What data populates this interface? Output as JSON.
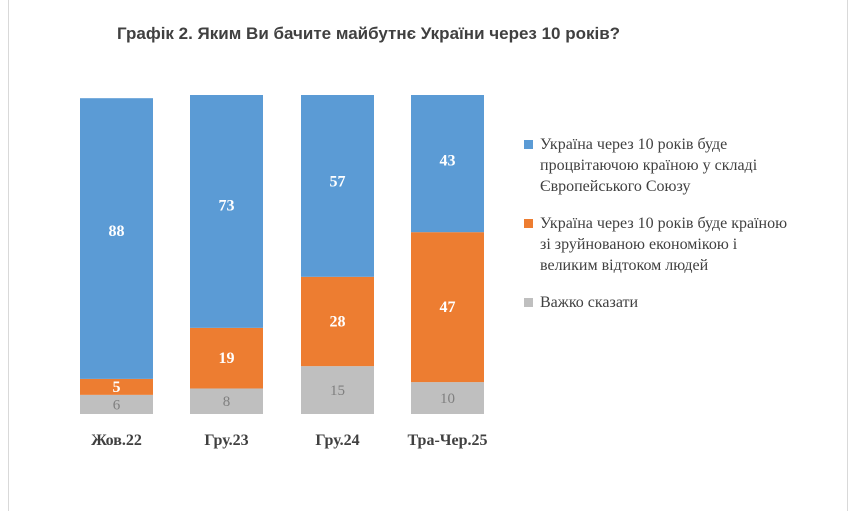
{
  "chart_data": {
    "type": "bar",
    "stacked": true,
    "title": "Графік 2. Яким Ви бачите майбутнє України через 10 років?",
    "categories": [
      "Жов.22",
      "Гру.23",
      "Гру.24",
      "Тра-Чер.25"
    ],
    "ylim": [
      0,
      100
    ],
    "grid": false,
    "legend_position": "right",
    "series": [
      {
        "name": "Україна через 10 років буде процвітаючою країною у складі Європейського Союзу",
        "color": "#5b9bd5",
        "values": [
          88,
          73,
          57,
          43
        ]
      },
      {
        "name": "Україна через 10 років буде країною зі зруйнованою економікою і великим відтоком людей",
        "color": "#ed7d31",
        "values": [
          5,
          19,
          28,
          47
        ]
      },
      {
        "name": "Важко сказати",
        "color": "#bfbfbf",
        "values": [
          6,
          8,
          15,
          10
        ]
      }
    ]
  }
}
